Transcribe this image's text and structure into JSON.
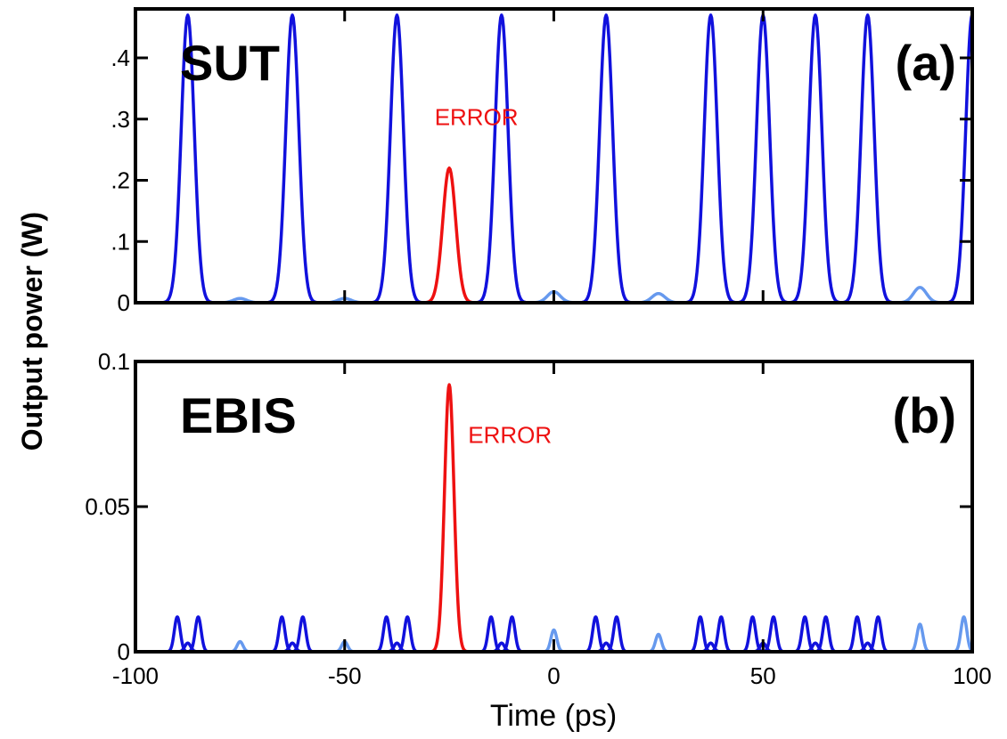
{
  "chart_data": [
    {
      "type": "line",
      "ylabel": "Output power (W)",
      "xlabel": "Time (ps)",
      "xlim": [
        -100,
        100
      ],
      "ylim": [
        0,
        0.48
      ],
      "yticks": [
        0,
        0.1,
        0.2,
        0.3,
        0.4
      ],
      "ytick_labels": [
        "0",
        ".1",
        ".2",
        ".3",
        ".4"
      ],
      "xticks": [
        -100,
        -50,
        0,
        50,
        100
      ],
      "show_x_tick_labels": false,
      "title_left": "SUT",
      "title_right": "(a)",
      "pulse_width_ps": 2.2,
      "series": [
        {
          "color": "#1111dd",
          "peaks": [
            {
              "x": -87.5,
              "y": 0.47
            },
            {
              "x": -62.5,
              "y": 0.47
            },
            {
              "x": -37.5,
              "y": 0.47
            },
            {
              "x": -12.5,
              "y": 0.47
            },
            {
              "x": 12.5,
              "y": 0.47
            },
            {
              "x": 37.5,
              "y": 0.47
            },
            {
              "x": 50,
              "y": 0.47
            },
            {
              "x": 62.5,
              "y": 0.47
            },
            {
              "x": 75,
              "y": 0.47
            },
            {
              "x": 100,
              "y": 0.47
            }
          ]
        },
        {
          "color": "#6699ee",
          "peaks": [
            {
              "x": -75,
              "y": 0.007
            },
            {
              "x": -50,
              "y": 0.007
            },
            {
              "x": 0,
              "y": 0.018
            },
            {
              "x": 25,
              "y": 0.015
            },
            {
              "x": 87.5,
              "y": 0.025
            }
          ]
        },
        {
          "color": "#ee1111",
          "peaks": [
            {
              "x": -25,
              "y": 0.22
            }
          ]
        }
      ],
      "annotation": {
        "text": "ERROR",
        "x": -28.5,
        "y": 0.29
      }
    },
    {
      "type": "line",
      "xlabel": "Time (ps)",
      "xlim": [
        -100,
        100
      ],
      "ylim": [
        0,
        0.1
      ],
      "yticks": [
        0,
        0.05,
        0.1
      ],
      "ytick_labels": [
        "0",
        "0.05",
        "0.1"
      ],
      "xticks": [
        -100,
        -50,
        0,
        50,
        100
      ],
      "xtick_labels": [
        "-100",
        "-50",
        "0",
        "50",
        "100"
      ],
      "show_x_tick_labels": true,
      "title_left": "EBIS",
      "title_right": "(b)",
      "pulse_width_ps": 1.0,
      "series": [
        {
          "color": "#1111dd",
          "peaks": [
            {
              "x": -90,
              "y": 0.012
            },
            {
              "x": -87.5,
              "y": 0.003
            },
            {
              "x": -85,
              "y": 0.012
            },
            {
              "x": -65,
              "y": 0.012
            },
            {
              "x": -62.5,
              "y": 0.003
            },
            {
              "x": -60,
              "y": 0.012
            },
            {
              "x": -40,
              "y": 0.012
            },
            {
              "x": -37.5,
              "y": 0.003
            },
            {
              "x": -35,
              "y": 0.012
            },
            {
              "x": -15,
              "y": 0.012
            },
            {
              "x": -12.5,
              "y": 0.003
            },
            {
              "x": -10,
              "y": 0.012
            },
            {
              "x": 10,
              "y": 0.012
            },
            {
              "x": 12.5,
              "y": 0.003
            },
            {
              "x": 15,
              "y": 0.012
            },
            {
              "x": 35,
              "y": 0.012
            },
            {
              "x": 37.5,
              "y": 0.003
            },
            {
              "x": 40,
              "y": 0.012
            },
            {
              "x": 47.5,
              "y": 0.012
            },
            {
              "x": 50,
              "y": 0.003
            },
            {
              "x": 52.5,
              "y": 0.012
            },
            {
              "x": 60,
              "y": 0.012
            },
            {
              "x": 62.5,
              "y": 0.003
            },
            {
              "x": 65,
              "y": 0.012
            },
            {
              "x": 72.5,
              "y": 0.012
            },
            {
              "x": 75,
              "y": 0.003
            },
            {
              "x": 77.5,
              "y": 0.012
            }
          ]
        },
        {
          "color": "#6699ee",
          "peaks": [
            {
              "x": -75,
              "y": 0.0035
            },
            {
              "x": -50,
              "y": 0.0035
            },
            {
              "x": 0,
              "y": 0.0075
            },
            {
              "x": 25,
              "y": 0.006
            },
            {
              "x": 87.5,
              "y": 0.0095
            },
            {
              "x": 98,
              "y": 0.012
            }
          ]
        },
        {
          "color": "#ee1111",
          "peaks": [
            {
              "x": -25,
              "y": 0.092
            }
          ],
          "pulse_width_ps": 1.6
        }
      ],
      "annotation": {
        "text": "ERROR",
        "x": -20.5,
        "y": 0.072
      }
    }
  ]
}
